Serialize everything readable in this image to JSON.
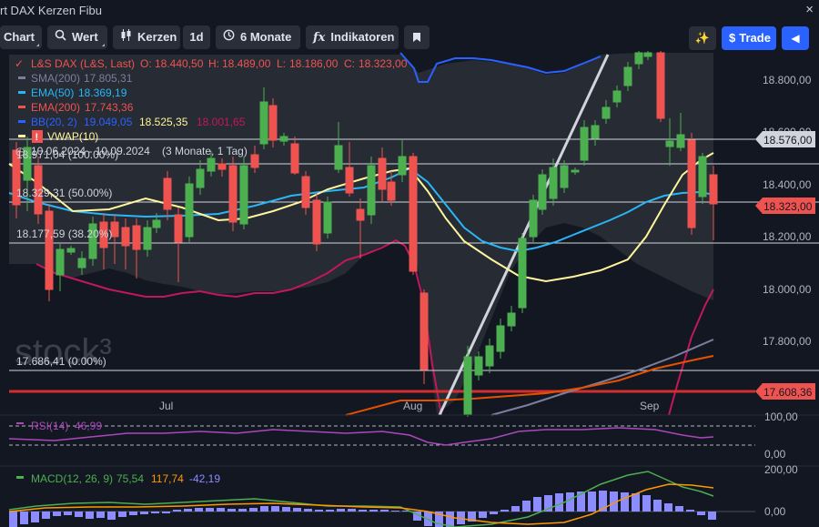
{
  "window": {
    "title": "rt DAX Kerzen Fibu",
    "close_glyph": "×"
  },
  "toolbar": {
    "chart_label": "Chart",
    "wert_label": "Wert",
    "kerzen_label": "Kerzen",
    "interval_label": "1d",
    "range_label": "6 Monate",
    "indicators_label": "Indikatoren",
    "trade_label": "Trade",
    "search_icon": "search-icon",
    "candles_icon": "candlestick-icon",
    "clock_icon": "clock-icon",
    "fx_icon": "fx-icon",
    "bookmark_icon": "bookmark-icon",
    "magic_icon": "sparkle-icon",
    "trade_icon": "dollar-icon",
    "collapse_icon": "caret-left-icon"
  },
  "legend": {
    "symbol": "L&S DAX (L&S, Last)",
    "o_label": "O:",
    "o": "18.440,50",
    "h_label": "H:",
    "h": "18.489,00",
    "l_label": "L:",
    "l": "18.186,00",
    "c_label": "C:",
    "c": "18.323,00",
    "sma_label": "SMA(200)",
    "sma": "17.805,31",
    "ema50_label": "EMA(50)",
    "ema50": "18.369,19",
    "ema200_label": "EMA(200)",
    "ema200": "17.743,36",
    "bb_label": "BB(20, 2)",
    "bb1": "19.049,05",
    "bb2": "18.525,35",
    "bb3": "18.001,65",
    "vwap_label": "VWAP(10)"
  },
  "fib": {
    "range": "10.06.2024 - 10.09.2024",
    "period": "(3 Monate, 1 Tag)",
    "level_100": "18.971,04 (100.00%)",
    "level_50": "18.329,31 (50.00%)",
    "level_38": "18.177,59 (38.20%)",
    "level_0": "17.686,41 (0.00%)"
  },
  "watermark": "stock³",
  "x_labels": [
    "Jul",
    "Aug",
    "Sep"
  ],
  "price_axis": [
    "18.800,00",
    "18.600,00",
    "18.400,00",
    "18.200,00",
    "18.000,00",
    "17.800,00"
  ],
  "price_badges": {
    "level": "18.576,00",
    "last": "18.323,00",
    "support": "17.608,36"
  },
  "rsi": {
    "label": "RSI(14)",
    "value": "46,99",
    "axis_top": "100,00",
    "axis_bottom": "0,00"
  },
  "macd": {
    "label": "MACD(12, 26, 9)",
    "v1": "75,54",
    "v2": "117,74",
    "v3": "-42,19",
    "axis_top": "200,00",
    "axis_bottom": "0,00"
  },
  "colors": {
    "background": "#131722",
    "up": "#4caf50",
    "down": "#ef5350",
    "bollinger": "#2962ff",
    "ema50": "#29b6f6",
    "vwap": "#fff59d",
    "ema200": "#e65100",
    "sma200": "#7b7f9e",
    "rsi": "#ab47bc",
    "macd_hist": "#8c8cff",
    "macd_line": "#4caf50",
    "signal_line": "#ff9800",
    "support": "#d32f2f",
    "trade": "#2962ff"
  },
  "chart_data": {
    "type": "candlestick",
    "x_months": [
      "Jul",
      "Aug",
      "Sep"
    ],
    "price_ticks": [
      18800,
      18600,
      18400,
      18200,
      18000,
      17800
    ],
    "horizontal_levels": [
      18576,
      18323,
      17608.36,
      18971.04,
      18329.31,
      18177.59,
      17686.41
    ],
    "ohlc": [
      [
        18440.5,
        18489,
        18186,
        18323
      ],
      [
        18540,
        18600,
        18480,
        18550
      ],
      [
        18480,
        18560,
        18350,
        18390
      ],
      [
        18420,
        18470,
        18380,
        18460
      ],
      [
        18340,
        18560,
        18200,
        18500
      ],
      [
        18600,
        18650,
        18350,
        18420
      ],
      [
        18750,
        18800,
        18520,
        18700
      ]
    ]
  }
}
